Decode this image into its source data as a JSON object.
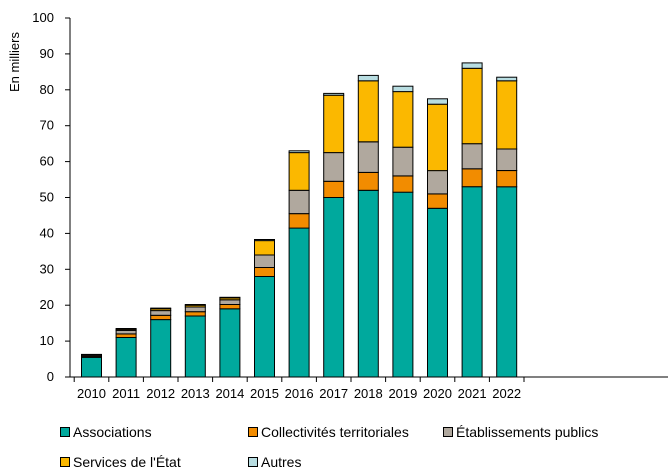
{
  "chart_data": {
    "type": "bar",
    "stacked": true,
    "ylabel": "En milliers",
    "xlabel": "",
    "ylim": [
      0,
      100
    ],
    "yticks": [
      0,
      10,
      20,
      30,
      40,
      50,
      60,
      70,
      80,
      90,
      100
    ],
    "grid": false,
    "legend_position": "bottom",
    "categories": [
      "2010",
      "2011",
      "2012",
      "2013",
      "2014",
      "2015",
      "2016",
      "2017",
      "2018",
      "2019",
      "2020",
      "2021",
      "2022"
    ],
    "series": [
      {
        "name": "Associations",
        "color": "#00A99D",
        "values": [
          5.5,
          11,
          16,
          17,
          19,
          28,
          41.5,
          50,
          52,
          51.5,
          47,
          53,
          53
        ]
      },
      {
        "name": "Collectivités territoriales",
        "color": "#F28C00",
        "values": [
          0.3,
          1.0,
          1.2,
          1.2,
          1.2,
          2.5,
          4.0,
          4.5,
          5.0,
          4.5,
          4.0,
          5.0,
          4.5
        ]
      },
      {
        "name": "Établissements publics",
        "color": "#B0A89E",
        "values": [
          0.3,
          1.0,
          1.3,
          1.3,
          1.3,
          3.5,
          6.5,
          8.0,
          8.5,
          8.0,
          6.5,
          7.0,
          6.0
        ]
      },
      {
        "name": "Services de l'État",
        "color": "#FBB800",
        "values": [
          0.1,
          0.3,
          0.5,
          0.5,
          0.5,
          4.0,
          10.5,
          16.0,
          17.0,
          15.5,
          18.5,
          21.0,
          19.0
        ]
      },
      {
        "name": "Autres",
        "color": "#B8DDE1",
        "values": [
          0.1,
          0.2,
          0.2,
          0.2,
          0.2,
          0.3,
          0.5,
          0.5,
          1.5,
          1.5,
          1.5,
          1.5,
          1.0
        ]
      }
    ]
  }
}
